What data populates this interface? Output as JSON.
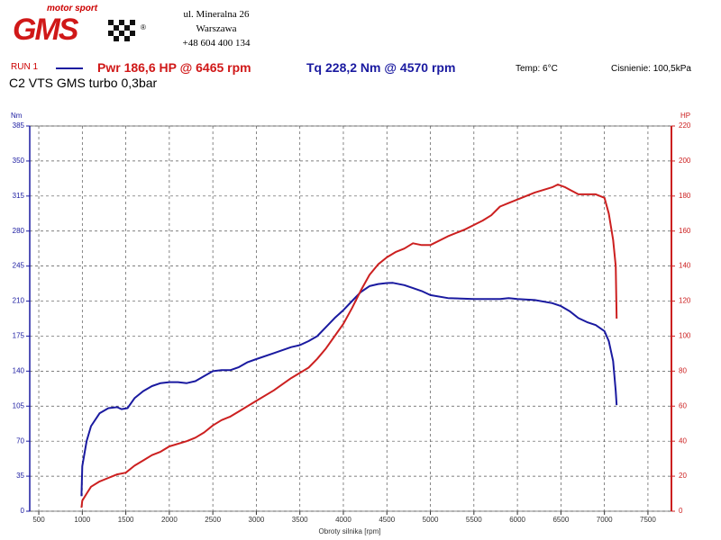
{
  "header": {
    "logo_tag": "motor sport",
    "logo": "GMS",
    "logo_mark": "®",
    "address": [
      "ul. Mineralna 26",
      "Warszawa",
      "+48 604 400 134"
    ],
    "run": "RUN 1",
    "power": "Pwr 186,6 HP @ 6465 rpm",
    "torque": "Tq 228,2 Nm @ 4570 rpm",
    "temp": "Temp: 6°C",
    "pressure": "Cisnienie: 100,5kPa",
    "title": "C2 VTS GMS turbo 0,3bar"
  },
  "chart_data": {
    "type": "line",
    "ylabel": "Nm",
    "y2label": "HP",
    "xlabel": "Obroty silnika [rpm]",
    "xlim": [
      396,
      7770
    ],
    "xticks": [
      500,
      1000,
      1500,
      2000,
      2500,
      3000,
      3500,
      4000,
      4500,
      5000,
      5500,
      6000,
      6500,
      7000,
      7500
    ],
    "ylim": [
      0,
      385
    ],
    "yticks": [
      0,
      35,
      70,
      105,
      140,
      175,
      210,
      245,
      280,
      315,
      350,
      385
    ],
    "y2lim": [
      0,
      220
    ],
    "y2ticks": [
      0,
      20,
      40,
      60,
      80,
      100,
      120,
      140,
      160,
      180,
      200,
      220
    ],
    "grid": true,
    "series": [
      {
        "color": "#1a1aa0",
        "x": [
          990,
          1000,
          1050,
          1100,
          1200,
          1300,
          1400,
          1450,
          1520,
          1600,
          1700,
          1800,
          1900,
          2000,
          2100,
          2200,
          2300,
          2400,
          2500,
          2600,
          2700,
          2800,
          2900,
          3000,
          3200,
          3400,
          3500,
          3600,
          3700,
          3800,
          3900,
          4000,
          4100,
          4200,
          4300,
          4400,
          4500,
          4570,
          4700,
          4800,
          4900,
          5000,
          5200,
          5500,
          5800,
          5900,
          6000,
          6200,
          6400,
          6500,
          6600,
          6700,
          6800,
          6900,
          7000,
          7050,
          7100,
          7130,
          7140
        ],
        "values": [
          15,
          45,
          70,
          85,
          98,
          103,
          104,
          102,
          103,
          113,
          120,
          125,
          128,
          129,
          129,
          128,
          130,
          135,
          140,
          141,
          141,
          144,
          149,
          152,
          158,
          164,
          166,
          170,
          175,
          184,
          193,
          201,
          210,
          219,
          225,
          227,
          228,
          228.2,
          226,
          223,
          220,
          216,
          213,
          212,
          212,
          213,
          212,
          211,
          208,
          205,
          200,
          193,
          189,
          186,
          180,
          170,
          150,
          120,
          106
        ]
      },
      {
        "color": "#cc2020",
        "axis": "y2",
        "x": [
          990,
          1000,
          1050,
          1100,
          1200,
          1300,
          1400,
          1500,
          1600,
          1700,
          1800,
          1900,
          2000,
          2200,
          2300,
          2400,
          2500,
          2600,
          2700,
          2800,
          3000,
          3200,
          3400,
          3600,
          3700,
          3800,
          3900,
          4000,
          4100,
          4200,
          4300,
          4400,
          4500,
          4600,
          4700,
          4800,
          4900,
          5000,
          5200,
          5400,
          5600,
          5700,
          5800,
          5900,
          6000,
          6200,
          6400,
          6465,
          6550,
          6700,
          6800,
          6900,
          7000,
          7050,
          7100,
          7130,
          7140
        ],
        "values": [
          2,
          6,
          10,
          14,
          17,
          19,
          21,
          22,
          26,
          29,
          32,
          34,
          37,
          40,
          42,
          45,
          49,
          52,
          54,
          57,
          63,
          69,
          76,
          82,
          87,
          93,
          100,
          107,
          116,
          126,
          135,
          141,
          145,
          148,
          150,
          153,
          152,
          152,
          157,
          161,
          166,
          169,
          174,
          176,
          178,
          182,
          185,
          186.6,
          185,
          181,
          181,
          181,
          179,
          170,
          155,
          140,
          110
        ]
      }
    ]
  }
}
